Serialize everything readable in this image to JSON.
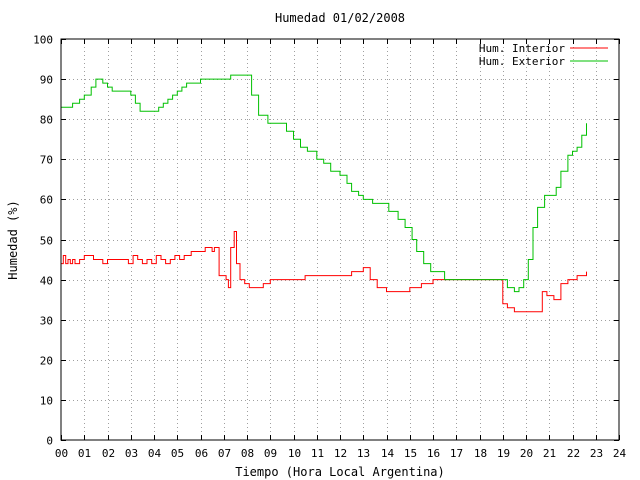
{
  "chart_data": {
    "type": "line",
    "title": "Humedad 01/02/2008",
    "xlabel": "Tiempo (Hora Local Argentina)",
    "ylabel": "Humedad (%)",
    "xlim": [
      0,
      24
    ],
    "ylim": [
      0,
      100
    ],
    "grid": true,
    "legend_position": "top-right",
    "x_ticks": [
      "00",
      "01",
      "02",
      "03",
      "04",
      "05",
      "06",
      "07",
      "08",
      "09",
      "10",
      "11",
      "12",
      "13",
      "14",
      "15",
      "16",
      "17",
      "18",
      "19",
      "20",
      "21",
      "22",
      "23",
      "24"
    ],
    "y_ticks": [
      "0",
      "10",
      "20",
      "30",
      "40",
      "50",
      "60",
      "70",
      "80",
      "90",
      "100"
    ],
    "series": [
      {
        "name": "Hum. Interior",
        "color": "#ff0000",
        "x": [
          0.0,
          0.1,
          0.2,
          0.3,
          0.4,
          0.5,
          0.6,
          0.8,
          1.0,
          1.2,
          1.4,
          1.5,
          1.8,
          2.0,
          2.3,
          2.6,
          2.9,
          3.1,
          3.3,
          3.5,
          3.7,
          3.9,
          4.1,
          4.3,
          4.5,
          4.7,
          4.9,
          5.1,
          5.3,
          5.6,
          5.9,
          6.2,
          6.5,
          6.6,
          6.8,
          7.0,
          7.1,
          7.2,
          7.3,
          7.45,
          7.55,
          7.7,
          7.9,
          8.1,
          8.4,
          8.7,
          9.0,
          9.5,
          10.0,
          10.5,
          11.0,
          11.5,
          12.0,
          12.5,
          12.7,
          13.0,
          13.3,
          13.6,
          14.0,
          14.5,
          15.0,
          15.5,
          16.0,
          16.5,
          17.0,
          17.5,
          18.0,
          18.5,
          18.9,
          19.0,
          19.2,
          19.5,
          20.0,
          20.5,
          20.7,
          20.9,
          21.2,
          21.5,
          21.8,
          22.0,
          22.2,
          22.4,
          22.6
        ],
        "y": [
          44,
          46,
          44,
          45,
          44,
          45,
          44,
          45,
          46,
          46,
          45,
          45,
          44,
          45,
          45,
          45,
          44,
          46,
          45,
          44,
          45,
          44,
          46,
          45,
          44,
          45,
          46,
          45,
          46,
          47,
          47,
          48,
          47,
          48,
          41,
          41,
          40,
          38,
          48,
          52,
          44,
          40,
          39,
          38,
          38,
          39,
          40,
          40,
          40,
          41,
          41,
          41,
          41,
          42,
          42,
          43,
          40,
          38,
          37,
          37,
          38,
          39,
          40,
          40,
          40,
          40,
          40,
          40,
          40,
          34,
          33,
          32,
          32,
          32,
          37,
          36,
          35,
          39,
          40,
          40,
          41,
          41,
          42
        ],
        "spikes": []
      },
      {
        "name": "Hum. Exterior",
        "color": "#00c000",
        "x": [
          0.0,
          0.4,
          0.5,
          0.8,
          1.0,
          1.1,
          1.3,
          1.5,
          1.8,
          2.0,
          2.2,
          2.4,
          2.6,
          2.8,
          3.0,
          3.2,
          3.4,
          3.6,
          4.0,
          4.2,
          4.4,
          4.6,
          4.8,
          5.0,
          5.2,
          5.4,
          5.6,
          5.8,
          6.0,
          6.5,
          7.0,
          7.3,
          7.6,
          8.0,
          8.2,
          8.5,
          8.9,
          9.3,
          9.7,
          10.0,
          10.3,
          10.6,
          11.0,
          11.3,
          11.6,
          12.0,
          12.3,
          12.5,
          12.8,
          13.0,
          13.4,
          13.8,
          14.1,
          14.5,
          14.8,
          15.1,
          15.3,
          15.6,
          15.9,
          16.2,
          16.5,
          16.8,
          17.1,
          17.4,
          17.7,
          18.0,
          18.3,
          18.6,
          18.9,
          19.2,
          19.5,
          19.7,
          19.9,
          20.1,
          20.3,
          20.5,
          20.8,
          21.0,
          21.3,
          21.5,
          21.8,
          22.0,
          22.2,
          22.4,
          22.6
        ],
        "y": [
          83,
          83,
          84,
          85,
          86,
          86,
          88,
          90,
          89,
          88,
          87,
          87,
          87,
          87,
          86,
          84,
          82,
          82,
          82,
          83,
          84,
          85,
          86,
          87,
          88,
          89,
          89,
          89,
          90,
          90,
          90,
          91,
          91,
          91,
          86,
          81,
          79,
          79,
          77,
          75,
          73,
          72,
          70,
          69,
          67,
          66,
          64,
          62,
          61,
          60,
          59,
          59,
          57,
          55,
          53,
          50,
          47,
          44,
          42,
          42,
          40,
          40,
          40,
          40,
          40,
          40,
          40,
          40,
          40,
          38,
          37,
          38,
          40,
          45,
          53,
          58,
          61,
          61,
          63,
          67,
          71,
          72,
          73,
          76,
          79
        ]
      }
    ]
  }
}
